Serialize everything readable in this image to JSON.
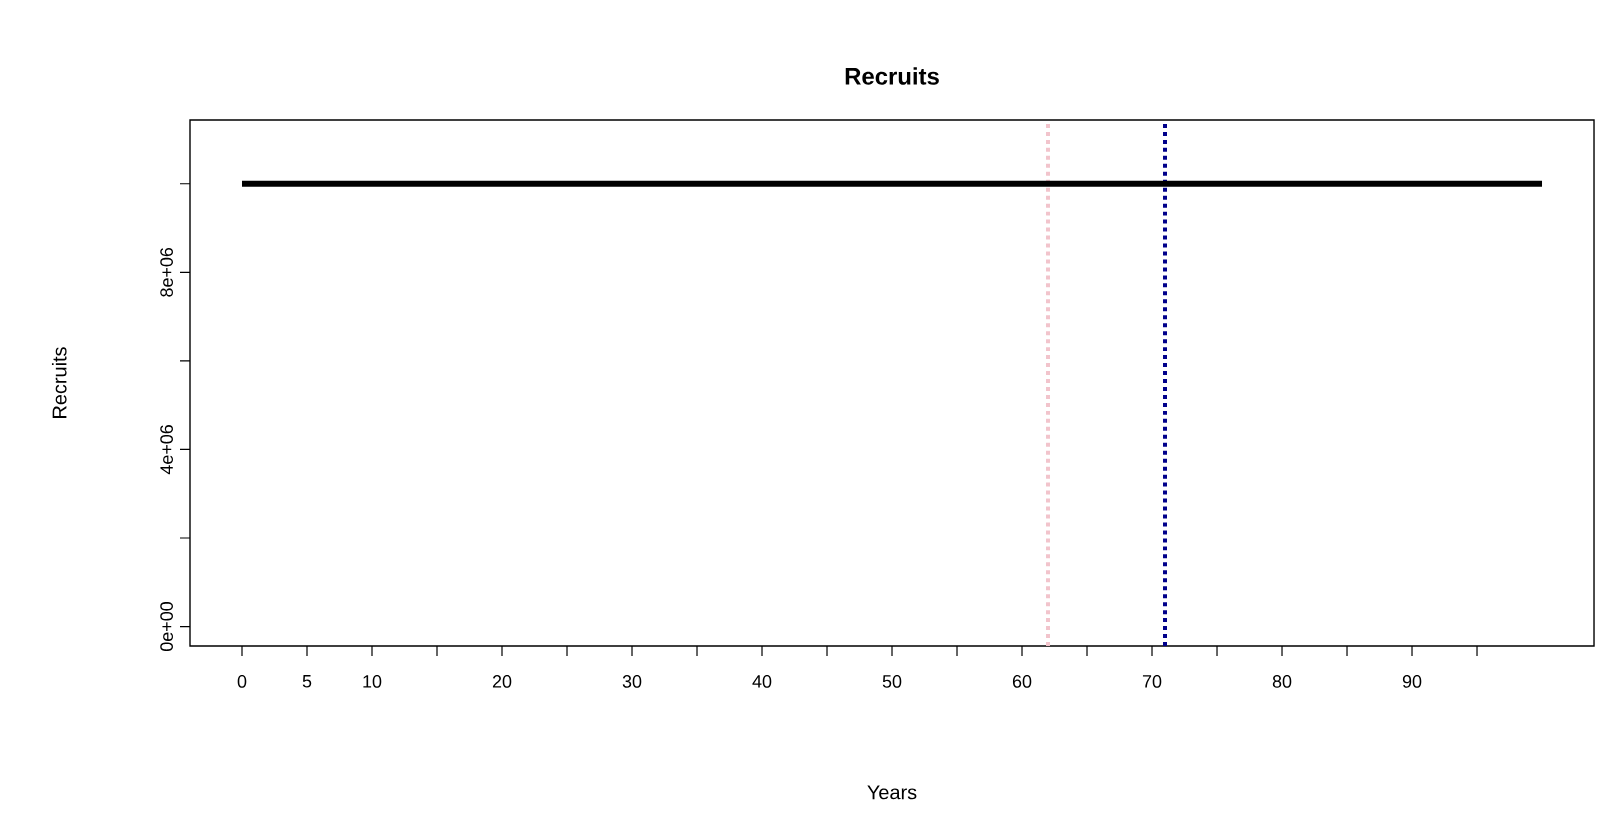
{
  "chart_data": {
    "type": "line",
    "title": "Recruits",
    "xlabel": "Years",
    "ylabel": "Recruits",
    "x": [
      0,
      100
    ],
    "series": [
      {
        "color": "#000000",
        "values": [
          10000000,
          10000000
        ]
      }
    ],
    "xlim": [
      -4,
      104
    ],
    "xticks": [
      0,
      5,
      10,
      {
        "value": 15,
        "label": null
      },
      20,
      {
        "value": 25,
        "label": null
      },
      30,
      {
        "value": 35,
        "label": null
      },
      40,
      {
        "value": 45,
        "label": null
      },
      50,
      {
        "value": 55,
        "label": null
      },
      60,
      {
        "value": 65,
        "label": null
      },
      70,
      {
        "value": 75,
        "label": null
      },
      80,
      {
        "value": 85,
        "label": null
      },
      90,
      {
        "value": 95,
        "label": null
      }
    ],
    "ylim": [
      -440000,
      11440000
    ],
    "yticks": [
      {
        "value": 0,
        "label": "0e+00"
      },
      {
        "value": 2000000,
        "label": null
      },
      {
        "value": 4000000,
        "label": "4e+06"
      },
      {
        "value": 6000000,
        "label": null
      },
      {
        "value": 8000000,
        "label": "8e+06"
      },
      {
        "value": 10000000,
        "label": null
      }
    ],
    "ref_lines": [
      {
        "axis": "x",
        "value": 62,
        "color": "#f2c4cc",
        "line_style": "dotted"
      },
      {
        "axis": "x",
        "value": 71,
        "color": "#00008b",
        "line_style": "dotted"
      }
    ],
    "marker": "none",
    "line_style": "solid",
    "grid": false
  }
}
